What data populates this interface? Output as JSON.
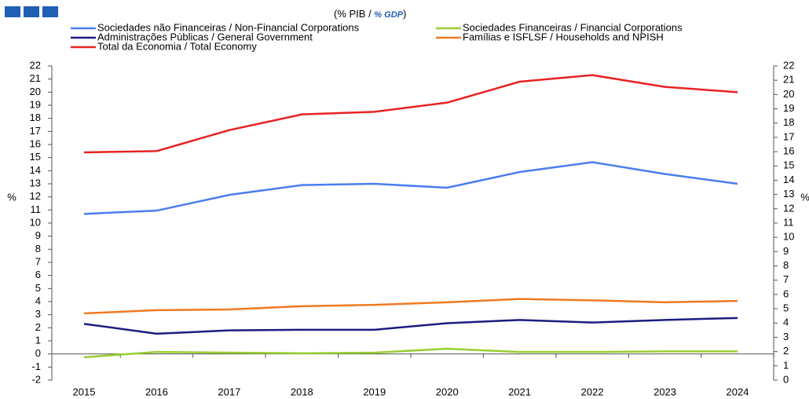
{
  "chart_data": {
    "type": "line",
    "subtitle": [
      "(% PIB / ",
      "% GDP",
      ")"
    ],
    "ylabel": "%",
    "y2label": "%",
    "categories": [
      "2015",
      "2016",
      "2017",
      "2018",
      "2019",
      "2020",
      "2021",
      "2022",
      "2023",
      "2024"
    ],
    "series": [
      {
        "name": "Sociedades não Financeiras / Non-Financial Corporations",
        "color": "#4a7df0",
        "values": [
          10.7,
          10.95,
          12.15,
          12.9,
          13.0,
          12.7,
          13.9,
          14.65,
          13.75,
          13.0
        ]
      },
      {
        "name": "Sociedades Financeiras / Financial Corporations",
        "color": "#9acd32",
        "values": [
          -0.25,
          0.15,
          0.1,
          0.05,
          0.1,
          0.4,
          0.15,
          0.15,
          0.2,
          0.2
        ]
      },
      {
        "name": "Administrações Públicas / General Government",
        "color": "#1c1c82",
        "values": [
          2.3,
          1.55,
          1.8,
          1.85,
          1.85,
          2.35,
          2.6,
          2.4,
          2.6,
          2.75
        ]
      },
      {
        "name": "Famílias e ISFLSF / Households and NPISH",
        "color": "#f07a22",
        "values": [
          3.1,
          3.35,
          3.4,
          3.65,
          3.75,
          3.95,
          4.2,
          4.1,
          3.95,
          4.05
        ]
      },
      {
        "name": "Total da Economia / Total Economy",
        "color": "#e82222",
        "values": [
          15.4,
          15.5,
          17.1,
          18.3,
          18.5,
          19.2,
          20.8,
          21.3,
          20.4,
          20.0
        ]
      }
    ],
    "ylim": [
      -2,
      22
    ],
    "yticks": [
      -2,
      -1,
      0,
      1,
      2,
      3,
      4,
      5,
      6,
      7,
      8,
      9,
      10,
      11,
      12,
      13,
      14,
      15,
      16,
      17,
      18,
      19,
      20,
      21,
      22
    ],
    "y2lim": [
      0,
      22
    ],
    "y2ticks": [
      0,
      1,
      2,
      3,
      4,
      5,
      6,
      7,
      8,
      9,
      10,
      11,
      12,
      13,
      14,
      15,
      16,
      17,
      18,
      19,
      20,
      21,
      22
    ]
  }
}
